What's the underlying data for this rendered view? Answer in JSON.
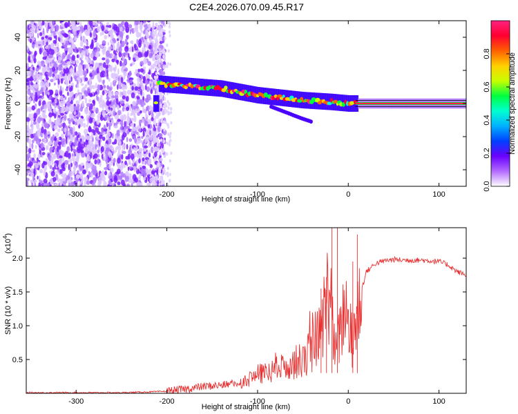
{
  "title": "C2E4.2026.070.09.45.R17",
  "chart_data": [
    {
      "type": "heatmap",
      "title": "C2E4.2026.070.09.45.R17",
      "xlabel": "Height of straight line (km)",
      "ylabel": "Frequency (Hz)",
      "xlim": [
        -355,
        130
      ],
      "ylim": [
        -50,
        50
      ],
      "xticks": [
        -300,
        -200,
        -100,
        0,
        100
      ],
      "yticks": [
        -40,
        -20,
        0,
        20,
        40
      ],
      "colorbar": {
        "label": "Normalized spectral amplitude",
        "range": [
          0,
          1
        ],
        "ticks": [
          "0.0",
          "0.2",
          "0.4",
          "0.6",
          "0.8"
        ],
        "colors": [
          "#ffffff",
          "#b36bff",
          "#6a00ff",
          "#0040ff",
          "#00b0ff",
          "#00ffd0",
          "#00ff40",
          "#c8ff00",
          "#ffd000",
          "#ff6000",
          "#ff0030",
          "#ff2080"
        ]
      },
      "regions": [
        {
          "description": "broadband noise",
          "x": [
            -355,
            -210
          ],
          "y": [
            -50,
            50
          ]
        },
        {
          "description": "signal track",
          "x": [
            -215,
            130
          ],
          "center_freq": [
            [
              -210,
              12
            ],
            [
              -140,
              9
            ],
            [
              -100,
              5
            ],
            [
              -50,
              2
            ],
            [
              -20,
              1
            ],
            [
              0,
              0
            ],
            [
              130,
              0
            ]
          ]
        }
      ]
    },
    {
      "type": "line",
      "xlabel": "Height of straight line (km)",
      "ylabel": "SNR (10 * v/v)",
      "y_multiplier": "(x10",
      "y_multiplier_exp": "4",
      "xlim": [
        -355,
        130
      ],
      "ylim": [
        0,
        2.45
      ],
      "xticks": [
        -300,
        -200,
        -100,
        0,
        100
      ],
      "yticks": [
        "0.5",
        "1.0",
        "1.5",
        "2.0"
      ],
      "ytick_values": [
        0.5,
        1.0,
        1.5,
        2.0
      ],
      "series": [
        {
          "color": "#e83030",
          "x": [
            -355,
            -300,
            -250,
            -220,
            -200,
            -180,
            -160,
            -140,
            -120,
            -110,
            -100,
            -90,
            -80,
            -70,
            -60,
            -50,
            -40,
            -30,
            -25,
            -20,
            -15,
            -10,
            -5,
            0,
            5,
            10,
            15,
            20,
            30,
            40,
            50,
            60,
            70,
            80,
            90,
            100,
            110,
            120,
            130
          ],
          "y": [
            0.01,
            0.01,
            0.01,
            0.02,
            0.03,
            0.06,
            0.1,
            0.12,
            0.15,
            0.2,
            0.28,
            0.3,
            0.35,
            0.4,
            0.45,
            0.5,
            0.65,
            0.9,
            1.35,
            1.6,
            0.6,
            0.8,
            1.2,
            1.1,
            0.7,
            1.2,
            1.55,
            1.8,
            1.92,
            1.96,
            1.98,
            1.97,
            1.97,
            1.97,
            1.96,
            1.95,
            1.9,
            1.8,
            1.75
          ],
          "spikes": [
            [
              -18,
              2.45
            ],
            [
              -12,
              2.45
            ],
            [
              10,
              2.35
            ],
            [
              -30,
              1.55
            ],
            [
              -24,
              1.72
            ],
            [
              5,
              1.95
            ]
          ]
        }
      ]
    }
  ]
}
